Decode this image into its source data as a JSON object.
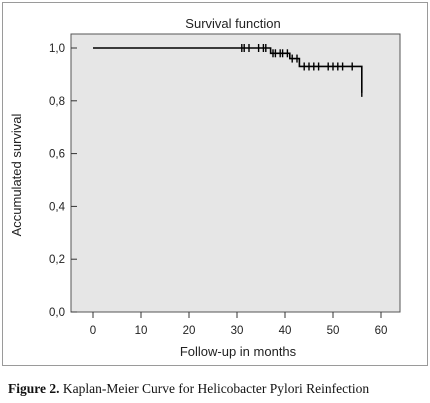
{
  "chart_data": {
    "type": "line",
    "title": "Survival function",
    "xlabel": "Follow-up in months",
    "ylabel": "Accumulated survival",
    "xlim": [
      0,
      60
    ],
    "ylim": [
      0,
      1
    ],
    "x_ticks": [
      "0",
      "10",
      "20",
      "30",
      "40",
      "50",
      "60"
    ],
    "y_ticks": [
      "0,0",
      "0,2",
      "0,4",
      "0,6",
      "0,8",
      "1,0"
    ],
    "grid": false,
    "step": true,
    "series": [
      {
        "x": [
          0,
          37,
          41,
          43,
          56
        ],
        "y": [
          1.0,
          0.98,
          0.96,
          0.93,
          0.83
        ]
      }
    ],
    "censored": [
      {
        "x": 31,
        "y": 1.0
      },
      {
        "x": 31.5,
        "y": 1.0
      },
      {
        "x": 32.5,
        "y": 1.0
      },
      {
        "x": 34.5,
        "y": 1.0
      },
      {
        "x": 35.5,
        "y": 1.0
      },
      {
        "x": 36,
        "y": 1.0
      },
      {
        "x": 37.5,
        "y": 0.98
      },
      {
        "x": 38,
        "y": 0.98
      },
      {
        "x": 39,
        "y": 0.98
      },
      {
        "x": 39.5,
        "y": 0.98
      },
      {
        "x": 40.5,
        "y": 0.98
      },
      {
        "x": 41.5,
        "y": 0.96
      },
      {
        "x": 42.5,
        "y": 0.96
      },
      {
        "x": 44,
        "y": 0.93
      },
      {
        "x": 45,
        "y": 0.93
      },
      {
        "x": 46,
        "y": 0.93
      },
      {
        "x": 47,
        "y": 0.93
      },
      {
        "x": 49,
        "y": 0.93
      },
      {
        "x": 50,
        "y": 0.93
      },
      {
        "x": 51,
        "y": 0.93
      },
      {
        "x": 52,
        "y": 0.93
      },
      {
        "x": 54,
        "y": 0.93
      },
      {
        "x": 56,
        "y": 0.83
      }
    ]
  },
  "caption": {
    "label": "Figure 2.",
    "text": " Kaplan-Meier Curve for Helicobacter Pylori Reinfection"
  }
}
